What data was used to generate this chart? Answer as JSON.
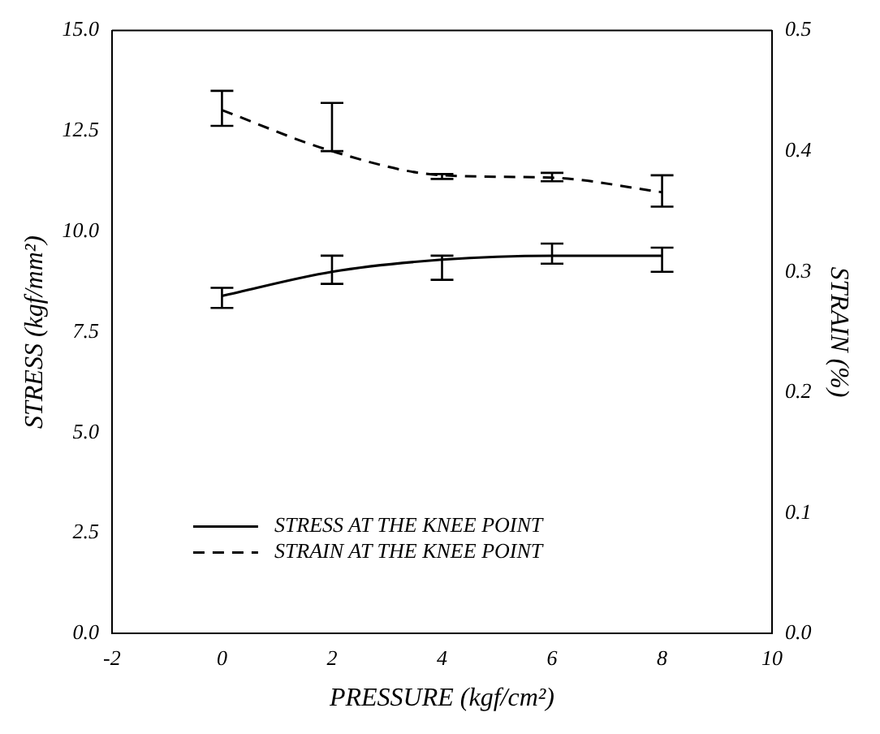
{
  "chart_data": {
    "type": "line",
    "xlabel": "PRESSURE (kgf/cm²)",
    "ylabel": "STRESS (kgf/mm²)",
    "y2label": "STRAIN (%)",
    "x": [
      0,
      2,
      4,
      6,
      8
    ],
    "series": [
      {
        "name": "STRESS AT THE KNEE POINT",
        "color": "#000000",
        "line_style": "solid",
        "values": [
          8.4,
          9.0,
          9.3,
          9.4,
          9.4
        ],
        "errors": [
          [
            8.1,
            8.6
          ],
          [
            8.7,
            9.4
          ],
          [
            8.8,
            9.4
          ],
          [
            9.2,
            9.7
          ],
          [
            9.0,
            9.6
          ]
        ]
      },
      {
        "name": "STRAIN AT THE KNEE POINT",
        "color": "#000000",
        "line_style": "dashed",
        "axis": "y2",
        "values": [
          0.434,
          0.4,
          0.38,
          0.378,
          0.366
        ],
        "errors": [
          [
            0.421,
            0.45
          ],
          [
            0.4,
            0.44
          ],
          [
            0.377,
            0.381
          ],
          [
            0.375,
            0.382
          ],
          [
            0.354,
            0.38
          ]
        ]
      }
    ],
    "xlim": [
      -2,
      10
    ],
    "xticks": [
      -2,
      0,
      2,
      4,
      6,
      8,
      10
    ],
    "ylim": [
      0,
      15
    ],
    "yticks": [
      {
        "value": 0,
        "label": "0.0"
      },
      2.5,
      {
        "value": 5,
        "label": "5.0"
      },
      7.5,
      {
        "value": 10,
        "label": "10.0"
      },
      12.5,
      {
        "value": 15,
        "label": "15.0"
      }
    ],
    "y2lim": [
      0,
      0.5
    ],
    "y2ticks": [
      {
        "value": 0,
        "label": "0.0"
      },
      0.1,
      0.2,
      0.3,
      0.4,
      0.5
    ],
    "grid": false,
    "legend": "bottom"
  }
}
